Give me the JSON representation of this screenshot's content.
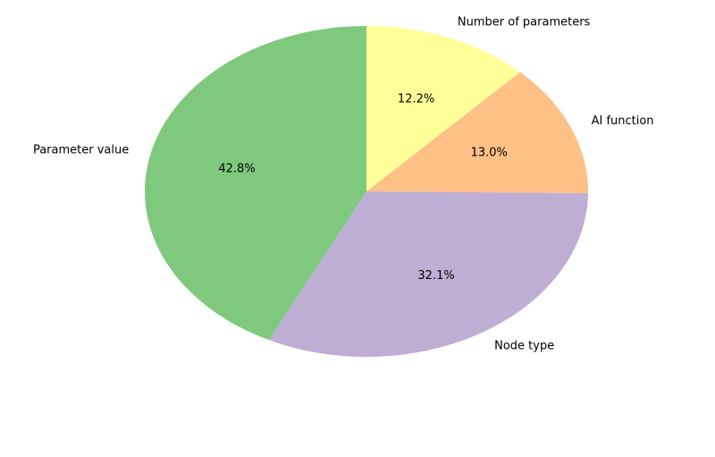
{
  "chart_data": {
    "type": "pie",
    "categories": [
      "Parameter value",
      "Node type",
      "AI function",
      "Number of parameters"
    ],
    "values": [
      42.8,
      32.1,
      13.0,
      12.2
    ],
    "value_labels": [
      "42.8%",
      "32.1%",
      "13.0%",
      "12.2%"
    ],
    "colors": [
      "#7fc97f",
      "#beaed4",
      "#fdc086",
      "#ffff99"
    ],
    "start_angle": 90,
    "counterclockwise": true
  }
}
